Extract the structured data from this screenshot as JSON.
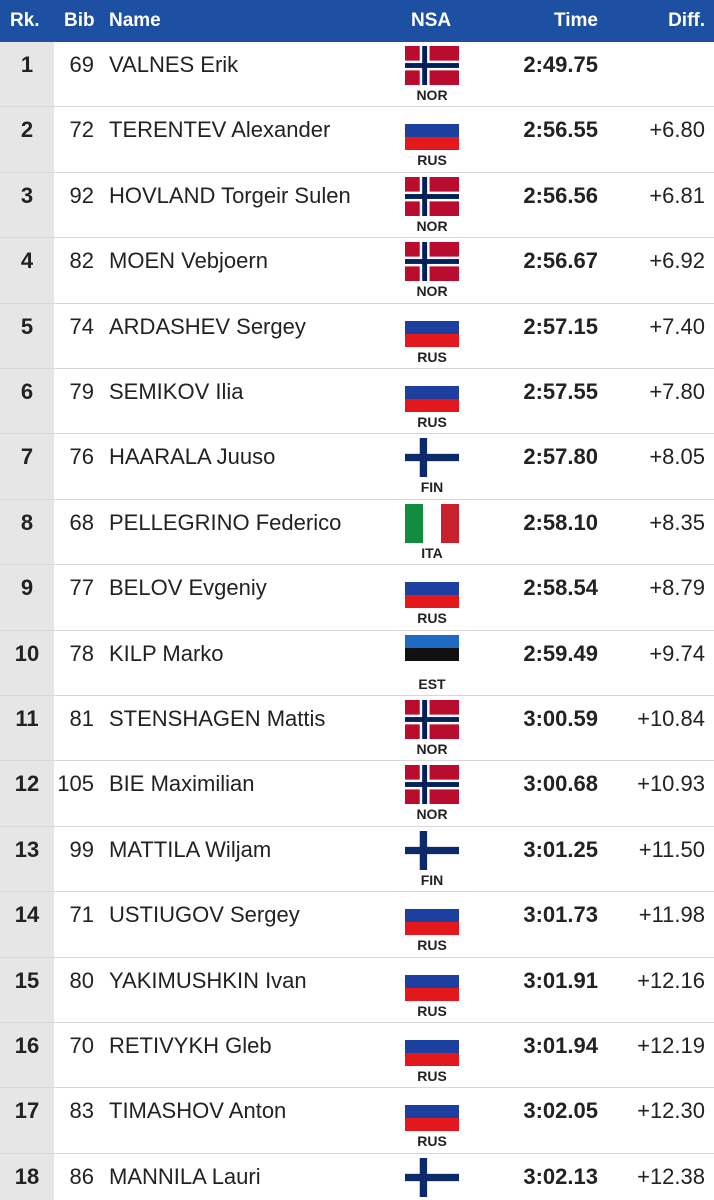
{
  "table": {
    "headers": [
      "Rk.",
      "Bib",
      "Name",
      "NSA",
      "Time",
      "Diff."
    ],
    "rows": [
      {
        "rank": "1",
        "bib": "69",
        "name": "VALNES Erik",
        "nsa": "NOR",
        "time": "2:49.75"
      },
      {
        "rank": "2",
        "bib": "72",
        "name": "TERENTEV Alexander",
        "nsa": "RUS",
        "time": "2:56.55",
        "diff": "+6.80"
      },
      {
        "rank": "3",
        "bib": "92",
        "name": "HOVLAND Torgeir Sulen",
        "nsa": "NOR",
        "time": "2:56.56",
        "diff": "+6.81"
      },
      {
        "rank": "4",
        "bib": "82",
        "name": "MOEN Vebjoern",
        "nsa": "NOR",
        "time": "2:56.67",
        "diff": "+6.92"
      },
      {
        "rank": "5",
        "bib": "74",
        "name": "ARDASHEV Sergey",
        "nsa": "RUS",
        "time": "2:57.15",
        "diff": "+7.40"
      },
      {
        "rank": "6",
        "bib": "79",
        "name": "SEMIKOV Ilia",
        "nsa": "RUS",
        "time": "2:57.55",
        "diff": "+7.80"
      },
      {
        "rank": "7",
        "bib": "76",
        "name": "HAARALA Juuso",
        "nsa": "FIN",
        "time": "2:57.80",
        "diff": "+8.05"
      },
      {
        "rank": "8",
        "bib": "68",
        "name": "PELLEGRINO Federico",
        "nsa": "ITA",
        "time": "2:58.10",
        "diff": "+8.35"
      },
      {
        "rank": "9",
        "bib": "77",
        "name": "BELOV Evgeniy",
        "nsa": "RUS",
        "time": "2:58.54",
        "diff": "+8.79"
      },
      {
        "rank": "10",
        "bib": "78",
        "name": "KILP Marko",
        "nsa": "EST",
        "time": "2:59.49",
        "diff": "+9.74"
      },
      {
        "rank": "11",
        "bib": "81",
        "name": "STENSHAGEN Mattis",
        "nsa": "NOR",
        "time": "3:00.59",
        "diff": "+10.84"
      },
      {
        "rank": "12",
        "bib": "105",
        "name": "BIE Maximilian",
        "nsa": "NOR",
        "time": "3:00.68",
        "diff": "+10.93"
      },
      {
        "rank": "13",
        "bib": "99",
        "name": "MATTILA Wiljam",
        "nsa": "FIN",
        "time": "3:01.25",
        "diff": "+11.50"
      },
      {
        "rank": "14",
        "bib": "71",
        "name": "USTIUGOV Sergey",
        "nsa": "RUS",
        "time": "3:01.73",
        "diff": "+11.98"
      },
      {
        "rank": "15",
        "bib": "80",
        "name": "YAKIMUSHKIN Ivan",
        "nsa": "RUS",
        "time": "3:01.91",
        "diff": "+12.16"
      },
      {
        "rank": "16",
        "bib": "70",
        "name": "RETIVYKH Gleb",
        "nsa": "RUS",
        "time": "3:01.94",
        "diff": "+12.19"
      },
      {
        "rank": "17",
        "bib": "83",
        "name": "TIMASHOV Anton",
        "nsa": "RUS",
        "time": "3:02.05",
        "diff": "+12.30"
      },
      {
        "rank": "18",
        "bib": "86",
        "name": "MANNILA Lauri",
        "nsa": "FIN",
        "time": "3:02.13",
        "diff": "+12.38"
      }
    ]
  }
}
